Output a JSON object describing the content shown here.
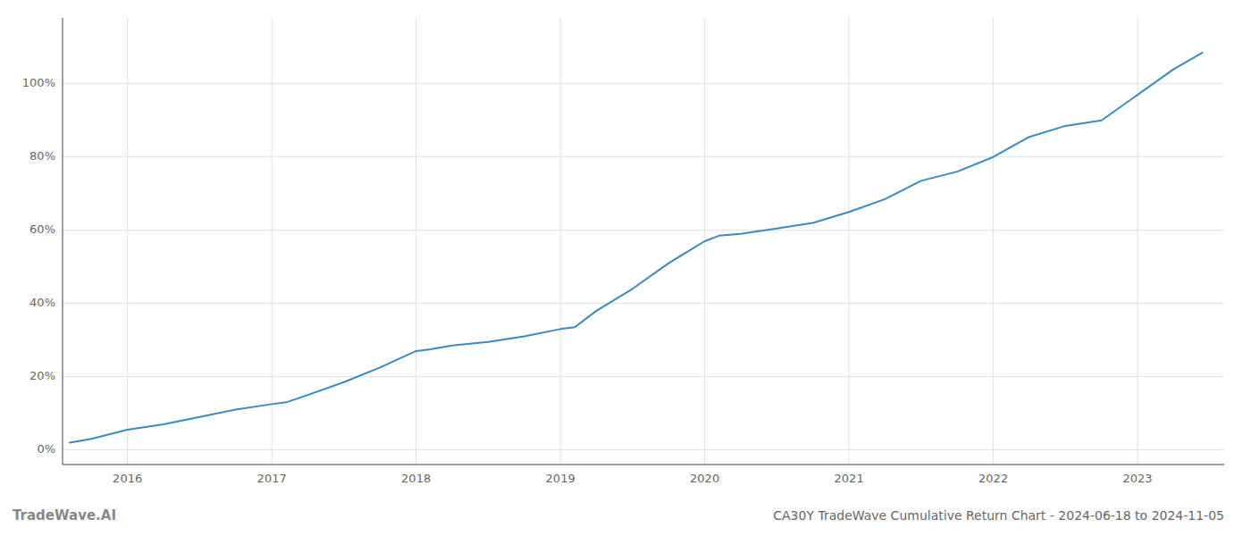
{
  "chart_data": {
    "type": "line",
    "title": "CA30Y TradeWave Cumulative Return Chart - 2024-06-18 to 2024-11-05",
    "annotations": [
      "TradeWave.AI"
    ],
    "x": [
      2015.6,
      2015.75,
      2016.0,
      2016.25,
      2016.5,
      2016.75,
      2017.0,
      2017.1,
      2017.25,
      2017.5,
      2017.75,
      2018.0,
      2018.1,
      2018.25,
      2018.5,
      2018.75,
      2019.0,
      2019.1,
      2019.25,
      2019.5,
      2019.75,
      2020.0,
      2020.1,
      2020.25,
      2020.5,
      2020.75,
      2021.0,
      2021.25,
      2021.5,
      2021.75,
      2022.0,
      2022.25,
      2022.5,
      2022.75,
      2023.0,
      2023.25,
      2023.45
    ],
    "values": [
      2.0,
      3.0,
      5.5,
      7.0,
      9.0,
      11.0,
      12.5,
      13.0,
      15.0,
      18.5,
      22.5,
      27.0,
      27.5,
      28.5,
      29.5,
      31.0,
      33.0,
      33.5,
      38.0,
      44.0,
      51.0,
      57.0,
      58.5,
      59.0,
      60.5,
      62.0,
      65.0,
      68.5,
      73.5,
      76.0,
      80.0,
      85.5,
      88.5,
      90.0,
      97.0,
      104.0,
      108.5
    ],
    "color": "#3a8abf",
    "xlim": [
      2015.55,
      2023.6
    ],
    "xticks": [
      2016,
      2017,
      2018,
      2019,
      2020,
      2021,
      2022,
      2023
    ],
    "ylim": [
      -4,
      118
    ],
    "yticks": [
      {
        "value": 0,
        "label": "0%"
      },
      {
        "value": 20,
        "label": "20%"
      },
      {
        "value": 40,
        "label": "40%"
      },
      {
        "value": 60,
        "label": "60%"
      },
      {
        "value": 80,
        "label": "80%"
      },
      {
        "value": 100,
        "label": "100%"
      }
    ],
    "grid": true
  }
}
